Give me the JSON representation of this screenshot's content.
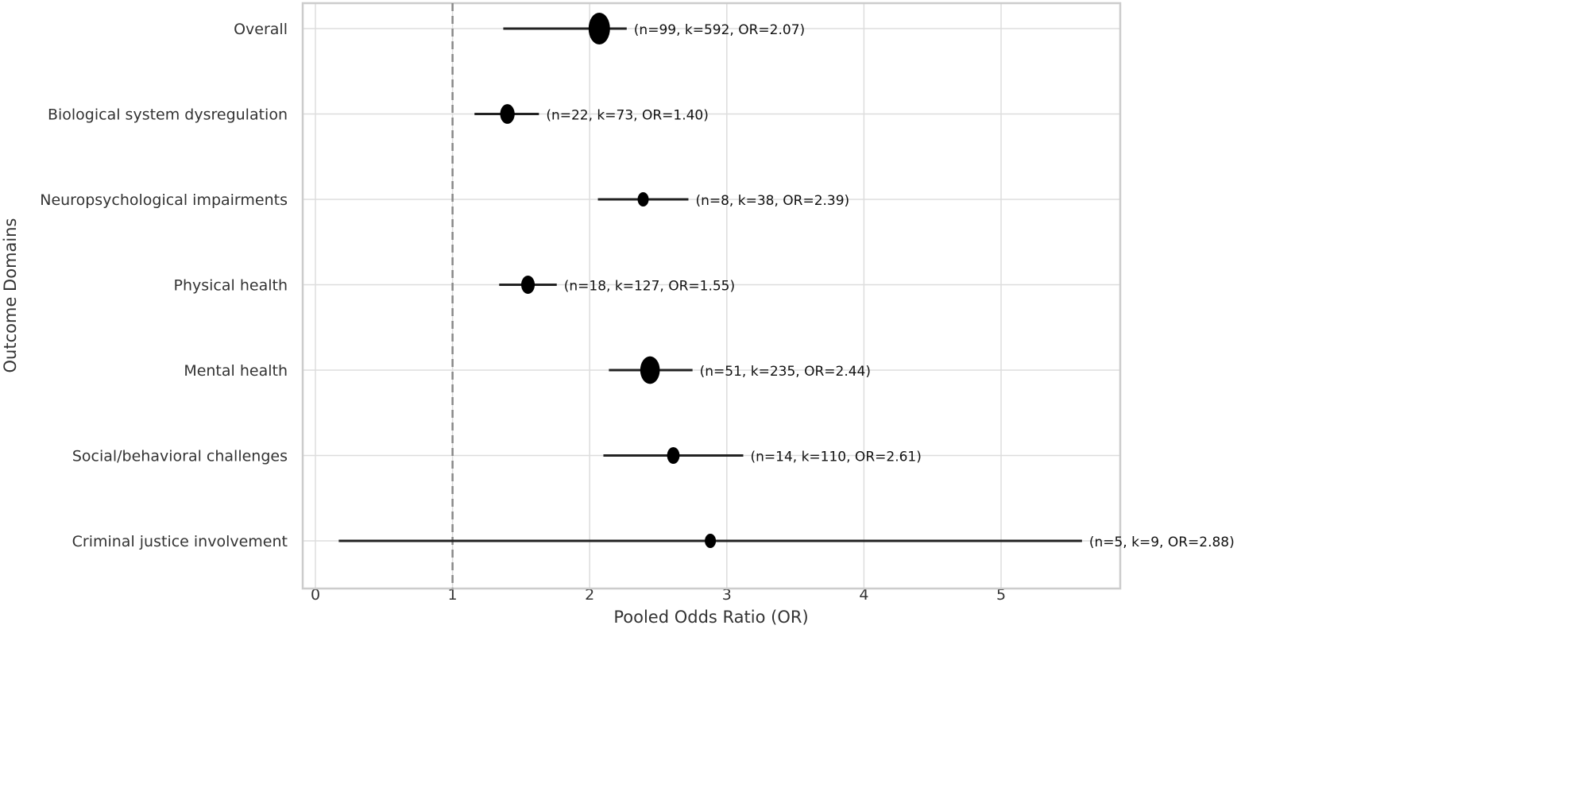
{
  "chart_data": {
    "type": "forest",
    "title": "",
    "xlabel": "Pooled Odds Ratio (OR)",
    "ylabel": "Outcome Domains",
    "xlim": [
      -0.1,
      5.85
    ],
    "xticks": [
      "0",
      "1",
      "2",
      "3",
      "4",
      "5"
    ],
    "xtick_values": [
      0,
      1,
      2,
      3,
      4,
      5
    ],
    "reference_line": 1,
    "grid": true,
    "rows": [
      {
        "label": "Overall",
        "or": 2.07,
        "ci_low": 1.37,
        "ci_high": 2.27,
        "n": 99,
        "k": 592,
        "annotation": "(n=99, k=592, OR=2.07)"
      },
      {
        "label": "Biological system dysregulation",
        "or": 1.4,
        "ci_low": 1.16,
        "ci_high": 1.63,
        "n": 22,
        "k": 73,
        "annotation": "(n=22, k=73, OR=1.40)"
      },
      {
        "label": "Neuropsychological impairments",
        "or": 2.39,
        "ci_low": 2.06,
        "ci_high": 2.72,
        "n": 8,
        "k": 38,
        "annotation": "(n=8, k=38, OR=2.39)"
      },
      {
        "label": "Physical health",
        "or": 1.55,
        "ci_low": 1.34,
        "ci_high": 1.76,
        "n": 18,
        "k": 127,
        "annotation": "(n=18, k=127, OR=1.55)"
      },
      {
        "label": "Mental health",
        "or": 2.44,
        "ci_low": 2.14,
        "ci_high": 2.75,
        "n": 51,
        "k": 235,
        "annotation": "(n=51, k=235, OR=2.44)"
      },
      {
        "label": "Social/behavioral challenges",
        "or": 2.61,
        "ci_low": 2.1,
        "ci_high": 3.12,
        "n": 14,
        "k": 110,
        "annotation": "(n=14, k=110, OR=2.61)"
      },
      {
        "label": "Criminal justice involvement",
        "or": 2.88,
        "ci_low": 0.17,
        "ci_high": 5.59,
        "n": 5,
        "k": 9,
        "annotation": "(n=5, k=9, OR=2.88)"
      }
    ]
  }
}
